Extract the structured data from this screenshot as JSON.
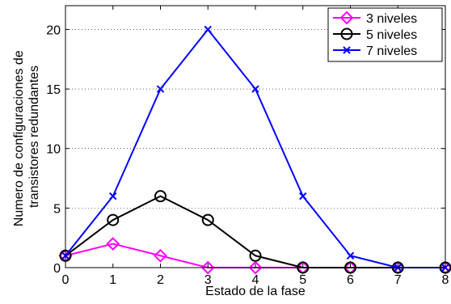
{
  "chart_data": {
    "type": "line",
    "xlabel": "Estado de la fase",
    "ylabel_lines": [
      "Numero de configuraciones de",
      "transistores redundantes"
    ],
    "xlim": [
      0,
      8
    ],
    "ylim": [
      0,
      22
    ],
    "xticks": [
      0,
      1,
      2,
      3,
      4,
      5,
      6,
      7,
      8
    ],
    "yticks": [
      0,
      5,
      10,
      15,
      20
    ],
    "grid": "y-dotted",
    "legend_position": "top-right",
    "series": [
      {
        "name": "3 niveles",
        "color": "#ff00ff",
        "marker": "diamond",
        "x": [
          0,
          1,
          2,
          3,
          4,
          5,
          6,
          7,
          8
        ],
        "y": [
          1,
          2,
          1,
          0,
          0,
          0,
          0,
          0,
          0
        ]
      },
      {
        "name": "5 niveles",
        "color": "#000000",
        "marker": "circle",
        "x": [
          0,
          1,
          2,
          3,
          4,
          5,
          6,
          7,
          8
        ],
        "y": [
          1,
          4,
          6,
          4,
          1,
          0,
          0,
          0,
          0
        ]
      },
      {
        "name": "7 niveles",
        "color": "#0000ff",
        "marker": "x",
        "x": [
          0,
          1,
          2,
          3,
          4,
          5,
          6,
          7,
          8
        ],
        "y": [
          1,
          6,
          15,
          20,
          15,
          6,
          1,
          0,
          0
        ]
      }
    ]
  }
}
